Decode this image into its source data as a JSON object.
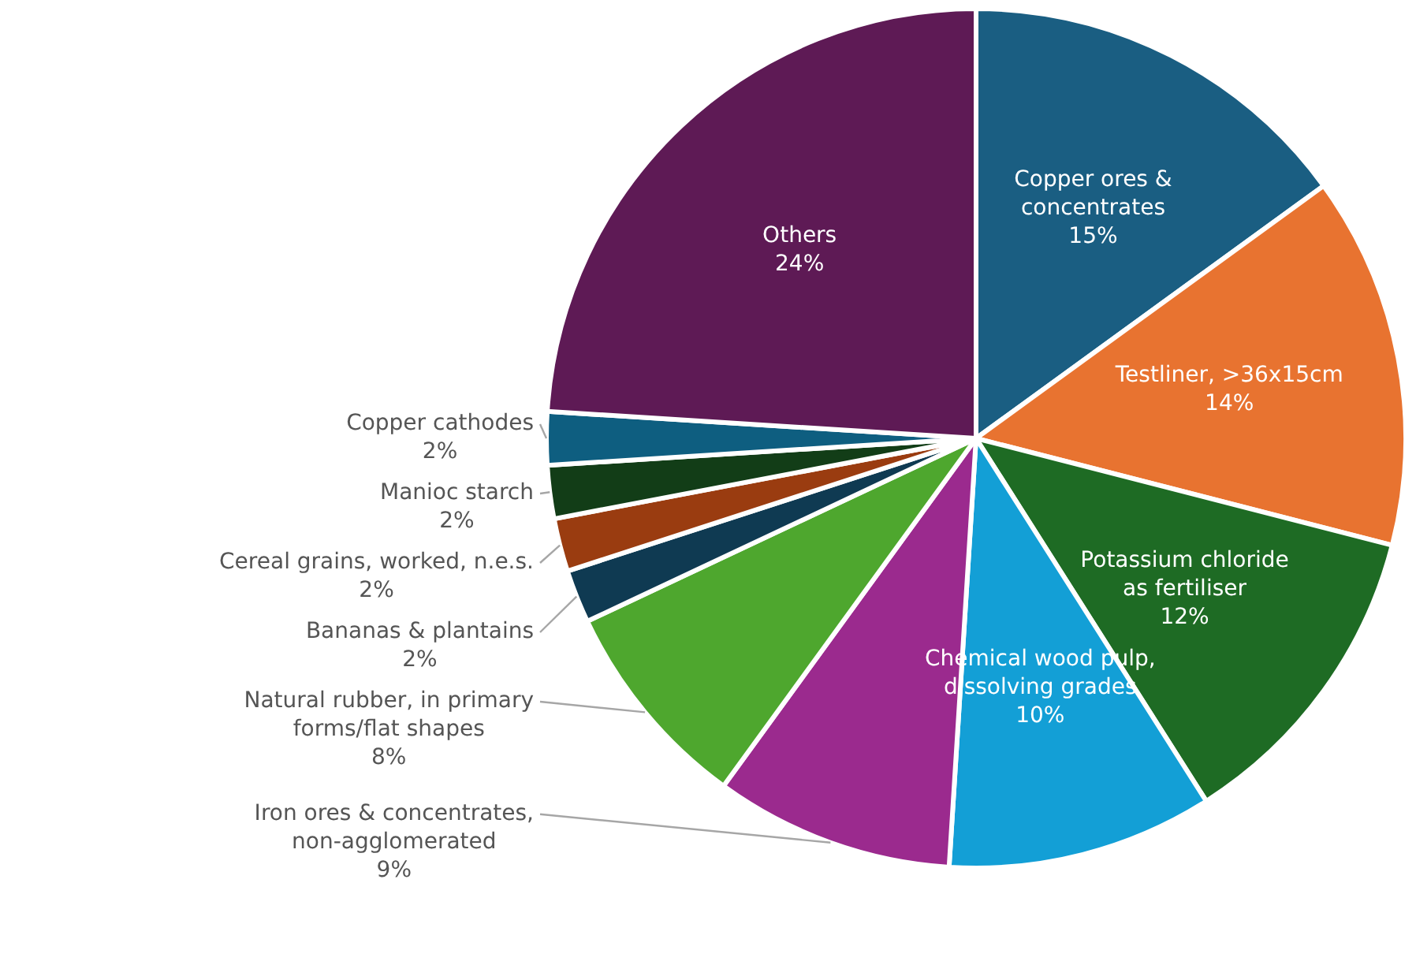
{
  "chart_data": {
    "type": "pie",
    "categories": [
      "Copper ores & concentrates",
      "Testliner, >36x15cm",
      "Potassium chloride as fertiliser",
      "Chemical wood pulp, dissolving grades",
      "Iron ores & concentrates, non-agglomerated",
      "Natural rubber, in primary forms/flat shapes",
      "Bananas & plantains",
      "Cereal grains, worked, n.e.s.",
      "Manioc starch",
      "Copper cathodes",
      "Others"
    ],
    "values": [
      15,
      14,
      12,
      10,
      9,
      8,
      2,
      2,
      2,
      2,
      24
    ],
    "value_labels": [
      "15%",
      "14%",
      "12%",
      "10%",
      "9%",
      "8%",
      "2%",
      "2%",
      "2%",
      "2%",
      "24%"
    ],
    "colors": [
      "#1a5e82",
      "#e87330",
      "#1e6b24",
      "#139fd6",
      "#9b2a8e",
      "#4ea72e",
      "#0f3a52",
      "#9a3c10",
      "#123d17",
      "#0e5e80",
      "#5e1a55"
    ]
  }
}
